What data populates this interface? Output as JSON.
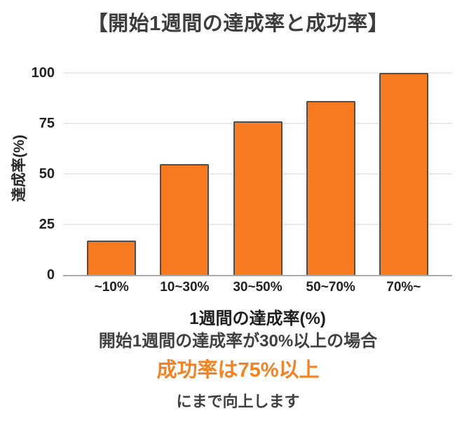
{
  "chart_data": {
    "type": "bar",
    "title": "【開始1週間の達成率と成功率】",
    "categories": [
      "~10%",
      "10~30%",
      "30~50%",
      "50~70%",
      "70%~"
    ],
    "values": [
      17,
      55,
      76,
      86,
      100
    ],
    "xlabel": "1週間の達成率(%)",
    "ylabel": "達成率(%)",
    "ylim": [
      0,
      100
    ],
    "yticks": [
      0,
      25,
      50,
      75,
      100
    ],
    "grid": true,
    "legend": false,
    "bar_color": "#f87a20",
    "bar_border_color": "#4f4f4f",
    "gridline_color": "#e9e9e9",
    "axis_line_color": "#a9a9a9"
  },
  "caption": {
    "line1": "開始1週間の達成率が30%以上の場合",
    "line2": "成功率は75%以上",
    "line3": "にまで向上します"
  },
  "colors": {
    "accent_orange": "#f6821f",
    "text_dark": "#3d3d3d"
  }
}
